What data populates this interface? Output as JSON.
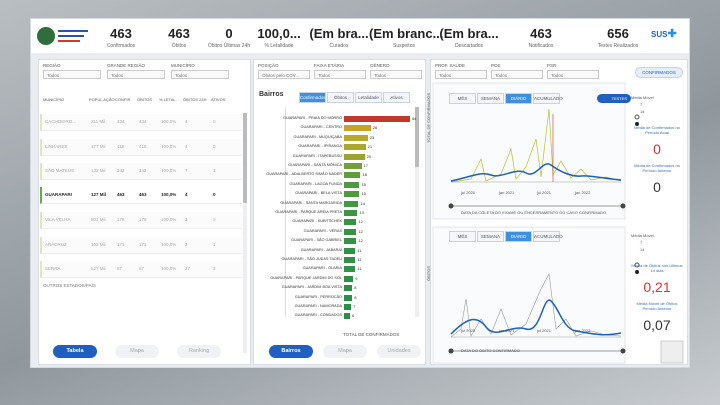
{
  "header": {
    "kpis": [
      {
        "value": "463",
        "label": "Confirmados"
      },
      {
        "value": "463",
        "label": "Óbitos"
      },
      {
        "value": "0",
        "label": "Óbitos Últimas 24h"
      },
      {
        "value": "100,0...",
        "label": "% Letalidade"
      },
      {
        "value": "(Em bra...",
        "label": "Curados"
      },
      {
        "value": "(Em branc...",
        "label": "Suspeitos"
      },
      {
        "value": "(Em bra...",
        "label": "Descartados"
      },
      {
        "value": "463",
        "label": "Notificados"
      },
      {
        "value": "656",
        "label": "Testes Realizados"
      }
    ],
    "logo_right": "SUS"
  },
  "left_panel": {
    "filters": [
      {
        "label": "REGIÃO",
        "value": "Todos"
      },
      {
        "label": "GRANDE REGIÃO",
        "value": "Todos"
      },
      {
        "label": "MUNICÍPIO",
        "value": "Todos"
      }
    ],
    "table": {
      "columns": [
        "MUNICÍPIO",
        "POPUL AÇÃO",
        "CONFIR.",
        "ÓBITOS",
        "% LETAL.",
        "ÓBITOS 24H",
        "ATIVOS"
      ],
      "rows": [
        [
          "CACHOEIRO...",
          "211 Mil",
          "434",
          "434",
          "100,0%",
          "4",
          "0"
        ],
        [
          "LINHARES",
          "177 Mil",
          "418",
          "418",
          "100,0%",
          "4",
          "0"
        ],
        [
          "SÃO MATEUS",
          "132 Mil",
          "342",
          "342",
          "100,0%",
          "7",
          "1"
        ],
        [
          "GUARAPARI",
          "127 Mil",
          "463",
          "463",
          "100,0%",
          "4",
          "0"
        ],
        [
          "VILA VELHA",
          "501 Mil",
          "176",
          "176",
          "100,0%",
          "3",
          "0"
        ],
        [
          "ARACRUZ",
          "103 Mil",
          "171",
          "171",
          "100,0%",
          "2",
          "1"
        ],
        [
          "SERRA",
          "527 Mil",
          "87",
          "87",
          "100,0%",
          "27",
          "3"
        ]
      ],
      "selected_row": 3,
      "footer": "OUTROS ESTADOS/PAÍS"
    },
    "buttons": [
      "Tabela",
      "Mapa",
      "Ranking"
    ]
  },
  "middle_panel": {
    "filters": [
      {
        "label": "POSIÇÃO",
        "value": "Óbitos pelo COV..."
      },
      {
        "label": "FAIXA ETÁRIA",
        "value": "Todos"
      },
      {
        "label": "GÊNERO",
        "value": "Todos"
      }
    ],
    "title": "Bairros",
    "tabs": [
      "Confirmados",
      "Óbitos",
      "Letalidade",
      "Ativos"
    ],
    "chart": {
      "type": "bar",
      "xlim": [
        0,
        66
      ],
      "axis_label": "TOTAL DE CONFIRMADOS",
      "bars": [
        {
          "label": "GUARAPARI - PRAIA DO MORRO",
          "value": 64,
          "color": "#c0392b"
        },
        {
          "label": "GUARAPARI - CENTRO",
          "value": 26,
          "color": "#c9a227"
        },
        {
          "label": "GUARAPARI - MUQUIÇABA",
          "value": 23,
          "color": "#b9a92a"
        },
        {
          "label": "GUARAPARI - IPIRANGA",
          "value": 21,
          "color": "#a9a72c"
        },
        {
          "label": "GUARAPARI - ITAPEBUSSU",
          "value": 20,
          "color": "#9aa42e"
        },
        {
          "label": "GUARAPARI - SANTA MÔNICA",
          "value": 17,
          "color": "#72a03a"
        },
        {
          "label": "GUARAPARI - ADALBERTO SIMÃO NADER",
          "value": 16,
          "color": "#5e9d3e"
        },
        {
          "label": "GUARAPARI - LAGOA FUNDA",
          "value": 15,
          "color": "#4f9a40"
        },
        {
          "label": "GUARAPARI - BELA VISTA",
          "value": 15,
          "color": "#4f9a40"
        },
        {
          "label": "GUARAPARI - SANTA MARGARIDA",
          "value": 14,
          "color": "#439841"
        },
        {
          "label": "GUARAPARI - PARQUE AREIA PRETA",
          "value": 13,
          "color": "#3b9642"
        },
        {
          "label": "GUARAPARI - KUBITSCHEK",
          "value": 12,
          "color": "#359443"
        },
        {
          "label": "GUARAPARI - VÉRAS",
          "value": 12,
          "color": "#359443"
        },
        {
          "label": "GUARAPARI - SÃO GABRIEL",
          "value": 12,
          "color": "#359443"
        },
        {
          "label": "GUARAPARI - JABARAÍ",
          "value": 11,
          "color": "#309244"
        },
        {
          "label": "GUARAPARI - SÃO JUDAS TADEU",
          "value": 11,
          "color": "#309244"
        },
        {
          "label": "GUARAPARI - OLARIA",
          "value": 11,
          "color": "#309244"
        },
        {
          "label": "GUARAPARI - PARQUE JARDIM DO SOL",
          "value": 9,
          "color": "#2b9045"
        },
        {
          "label": "GUARAPARI - JARDIM BOA VISTA",
          "value": 8,
          "color": "#2b9045"
        },
        {
          "label": "GUARAPARI - PERROCÃO",
          "value": 8,
          "color": "#2b9045"
        },
        {
          "label": "GUARAPARI - NAMORADA",
          "value": 7,
          "color": "#278e46"
        },
        {
          "label": "GUARAPARI - CONDADOS",
          "value": 6,
          "color": "#278e46"
        }
      ]
    },
    "buttons": [
      "Bairros",
      "Mapa",
      "Unidades"
    ]
  },
  "right_panel": {
    "filters": [
      {
        "label": "PROF. SAÚDE",
        "value": "Todos"
      },
      {
        "label": "POS",
        "value": "Todos"
      },
      {
        "label": "PSR",
        "value": "Todos"
      }
    ],
    "add_button": "CONFIRMADOS",
    "top_chart": {
      "tabs": [
        "MÊS",
        "SEMANA",
        "DIÁRIO",
        "ACUMULADO"
      ],
      "toggle": "TESTES",
      "y_label": "TOTAL DE CONFIRMADOS",
      "x_label": "DATA DA COLETA DO EXAME OU ENCERRAMENTO DO CASO CONFIRMADO",
      "dates": [
        "jul 2020",
        "jan 2021",
        "jul 2021",
        "jan 2022"
      ],
      "side": {
        "title": "Média Móvel",
        "options": [
          "7",
          "14"
        ],
        "current_label": "Média de Confirmados no Período Atual",
        "current": "0",
        "previous_label": "Média de Confirmados no Período Anterior",
        "previous": "0"
      }
    },
    "bottom_chart": {
      "tabs": [
        "MÊS",
        "SEMANA",
        "DIÁRIO",
        "ACUMULADO"
      ],
      "y_label": "ÓBITOS",
      "x_label": "DATA DO ÓBITO CONFIRMADO",
      "dates": [
        "jul 2020",
        "jan 2021",
        "jul 2021",
        "jan 2022"
      ],
      "side": {
        "title": "Média Móvel",
        "options": [
          "7",
          "14"
        ],
        "current_label": "Média de Óbitos nos Últimos 14 dias",
        "current": "0,21",
        "previous_label": "Média Móvel de Óbitos Período Anterior",
        "previous": "0,07"
      }
    }
  }
}
